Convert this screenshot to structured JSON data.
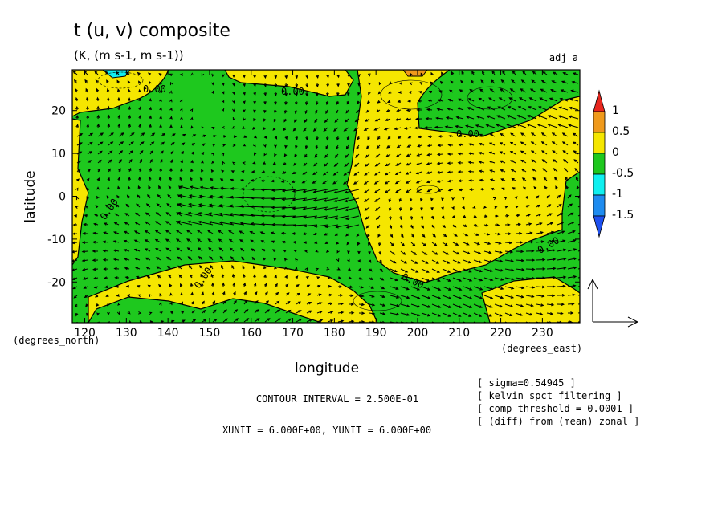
{
  "chart_data": {
    "type": "heatmap",
    "title": "t (u, v) composite",
    "subtitle": "(K, (m s-1, m s-1))",
    "run_label": "adj_a",
    "xlabel": "longitude",
    "ylabel": "latitude",
    "x_unit_label": "(degrees_east)",
    "y_unit_label": "(degrees_north)",
    "xlim": [
      117,
      239
    ],
    "ylim": [
      -29.5,
      29.5
    ],
    "x_ticks": [
      120,
      130,
      140,
      150,
      160,
      170,
      180,
      190,
      200,
      210,
      220,
      230
    ],
    "y_ticks": [
      -20,
      -10,
      0,
      10,
      20
    ],
    "colorbar": {
      "levels": [
        -1.5,
        -1,
        -0.5,
        0,
        0.5,
        1
      ],
      "labels": [
        "1",
        "0.5",
        "0",
        "-0.5",
        "-1",
        "-1.5"
      ],
      "colors": [
        "#e8271e",
        "#f09a1c",
        "#f5e600",
        "#1ec81e",
        "#10f0f0",
        "#1e8cf0",
        "#1e50f0"
      ]
    },
    "contour_labels": [
      "0.00",
      "0.00",
      "0.00",
      "0.00",
      "0.00",
      "0.00"
    ],
    "field_regions": [
      {
        "sign": "negative",
        "range": [
          -0.5,
          0
        ],
        "desc": "central band",
        "color": "#1ec81e"
      },
      {
        "sign": "positive",
        "range": [
          0,
          0.5
        ],
        "color": "#f5e600"
      }
    ],
    "vector_field": "wind vectors (u, v)"
  },
  "notes": {
    "contour_interval": "CONTOUR INTERVAL = 2.500E-01",
    "units": "XUNIT = 6.000E+00, YUNIT = 6.000E+00",
    "info": [
      "[ sigma=0.54945 ]",
      "[ kelvin spct filtering ]",
      "[ comp threshold = 0.0001 ]",
      "[ (diff) from (mean) zonal ]"
    ]
  }
}
